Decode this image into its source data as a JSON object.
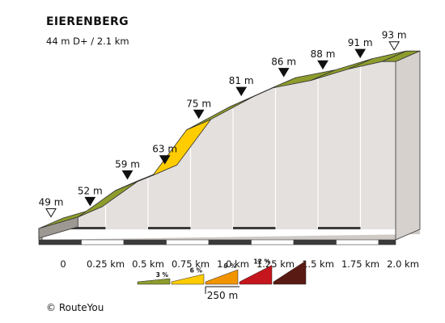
{
  "title": "EIERENBERG",
  "subtitle": "44 m D+ / 2.1 km",
  "credit": "© RouteYou",
  "chart_data": {
    "type": "area",
    "title": "EIERENBERG",
    "subtitle": "44 m D+ / 2.1 km",
    "x_unit": "km",
    "y_unit": "m",
    "points": [
      {
        "x": 0.0,
        "elevation": 49,
        "label": "49 m",
        "marker": "start"
      },
      {
        "x": 0.23,
        "elevation": 52,
        "label": "52 m",
        "marker": "mid"
      },
      {
        "x": 0.45,
        "elevation": 59,
        "label": "59 m",
        "marker": "mid"
      },
      {
        "x": 0.67,
        "elevation": 63,
        "label": "63 m",
        "marker": "mid"
      },
      {
        "x": 0.87,
        "elevation": 75,
        "label": "75 m",
        "marker": "mid"
      },
      {
        "x": 1.12,
        "elevation": 81,
        "label": "81 m",
        "marker": "mid"
      },
      {
        "x": 1.37,
        "elevation": 86,
        "label": "86 m",
        "marker": "mid"
      },
      {
        "x": 1.6,
        "elevation": 88,
        "label": "88 m",
        "marker": "mid"
      },
      {
        "x": 1.82,
        "elevation": 91,
        "label": "91 m",
        "marker": "mid"
      },
      {
        "x": 2.02,
        "elevation": 93,
        "label": "93 m",
        "marker": "end"
      },
      {
        "x": 2.1,
        "elevation": 93,
        "label": "",
        "marker": "none"
      }
    ],
    "segment_gradient_class": [
      "3",
      "3",
      "3",
      "6",
      "3",
      "3",
      "3",
      "3",
      "3",
      "3"
    ],
    "x_ticks": [
      0,
      0.25,
      0.5,
      0.75,
      1.0,
      1.25,
      1.5,
      1.75,
      2.0
    ],
    "x_tick_labels": [
      "0",
      "0.25 km",
      "0.5 km",
      "0.75 km",
      "1.0 km",
      "1.25 km",
      "1.5 km",
      "1.75 km",
      "2.0 km"
    ],
    "legend": [
      {
        "label": "3 %",
        "color": "#8d9c2c"
      },
      {
        "label": "6 %",
        "color": "#ffcc00"
      },
      {
        "label": "9 %",
        "color": "#f29400"
      },
      {
        "label": "12 %",
        "color": "#c4161c"
      },
      {
        "label": "",
        "color": "#5a1a14"
      }
    ],
    "scale_bar_label": "250 m",
    "colors": {
      "grade_3": "#8d9c2c",
      "grade_3_top": "#a8b83d",
      "grade_6": "#ffcc00",
      "wall": "#e4e0dd",
      "base": "#3a3a3a"
    }
  }
}
